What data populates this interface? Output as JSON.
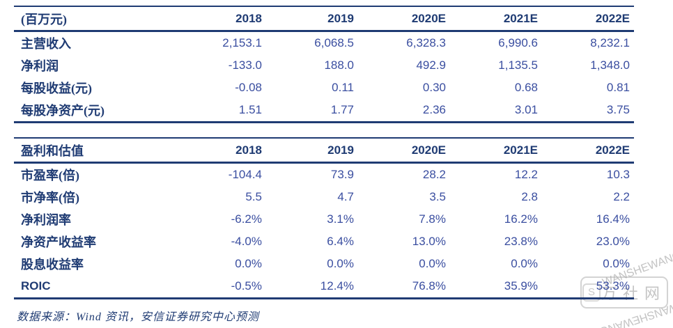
{
  "colors": {
    "navy": "#1F3B73",
    "number_blue": "#3A4EA0",
    "watermark_gray": "#c3c3c3",
    "background": "#ffffff"
  },
  "table1": {
    "unit_label": "(百万元)",
    "columns": [
      "2018",
      "2019",
      "2020E",
      "2021E",
      "2022E"
    ],
    "rows": [
      {
        "label": "主营收入",
        "values": [
          "2,153.1",
          "6,068.5",
          "6,328.3",
          "6,990.6",
          "8,232.1"
        ]
      },
      {
        "label": "净利润",
        "values": [
          "-133.0",
          "188.0",
          "492.9",
          "1,135.5",
          "1,348.0"
        ]
      },
      {
        "label": "每股收益(元)",
        "values": [
          "-0.08",
          "0.11",
          "0.30",
          "0.68",
          "0.81"
        ]
      },
      {
        "label": "每股净资产(元)",
        "values": [
          "1.51",
          "1.77",
          "2.36",
          "3.01",
          "3.75"
        ]
      }
    ]
  },
  "table2": {
    "title": "盈利和估值",
    "columns": [
      "2018",
      "2019",
      "2020E",
      "2021E",
      "2022E"
    ],
    "rows": [
      {
        "label": "市盈率(倍)",
        "values": [
          "-104.4",
          "73.9",
          "28.2",
          "12.2",
          "10.3"
        ]
      },
      {
        "label": "市净率(倍)",
        "values": [
          "5.5",
          "4.7",
          "3.5",
          "2.8",
          "2.2"
        ]
      },
      {
        "label": "净利润率",
        "values": [
          "-6.2%",
          "3.1%",
          "7.8%",
          "16.2%",
          "16.4%"
        ]
      },
      {
        "label": "净资产收益率",
        "values": [
          "-4.0%",
          "6.4%",
          "13.0%",
          "23.8%",
          "23.0%"
        ]
      },
      {
        "label": "股息收益率",
        "values": [
          "0.0%",
          "0.0%",
          "0.0%",
          "0.0%",
          "0.0%"
        ]
      },
      {
        "label": "ROIC",
        "values": [
          "-0.5%",
          "12.4%",
          "76.8%",
          "35.9%",
          "53.3%"
        ]
      }
    ]
  },
  "footer": {
    "source": "数据来源：Wind 资讯，安信证券研究中心预测"
  },
  "watermark": {
    "caption": "WANSHEWANG",
    "box_text": "万社网",
    "logo_letter": "S"
  }
}
